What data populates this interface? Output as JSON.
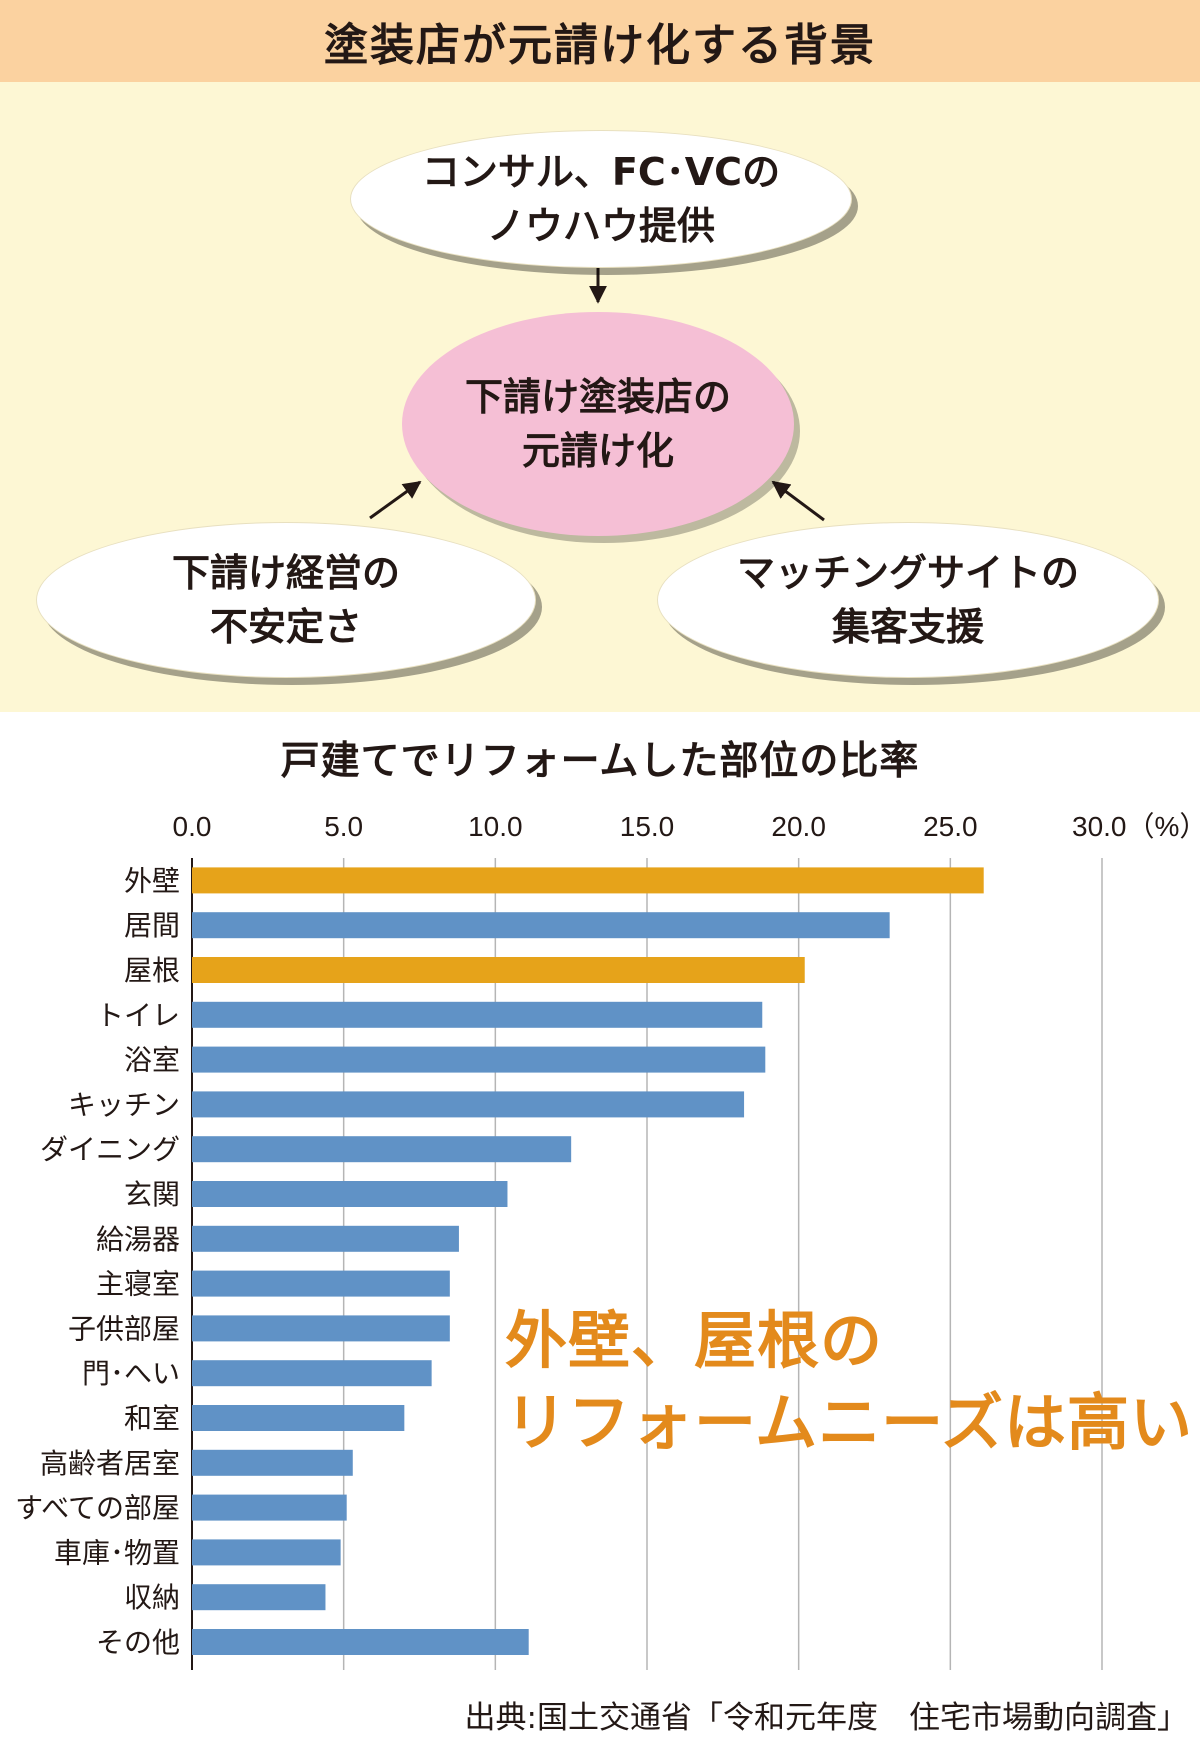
{
  "diagram": {
    "title": "塗装店が元請け化する背景",
    "top_node": "コンサル、FC･VCの\nノウハウ提供",
    "center_node": "下請け塗装店の\n元請け化",
    "left_node": "下請け経営の\n不安定さ",
    "right_node": "マッチングサイトの\n集客支援"
  },
  "chart_title": "戸建てでリフォームした部位の比率",
  "callout": "外壁、屋根の\nリフォームニーズは高い",
  "source": "出典:国土交通省「令和元年度　住宅市場動向調査」",
  "colors": {
    "highlight": "#e6a31a",
    "default": "#6092c6",
    "callout": "#e38a1c",
    "header": "#fbd2a0",
    "panel": "#fdf7d4",
    "center_node": "#f5bfd5"
  },
  "chart_data": {
    "type": "bar",
    "orientation": "horizontal",
    "title": "戸建てでリフォームした部位の比率",
    "xlim": [
      0,
      30
    ],
    "x_ticks": [
      "0.0",
      "5.0",
      "10.0",
      "15.0",
      "20.0",
      "25.0",
      "30.0（%）"
    ],
    "x_tick_values": [
      0,
      5,
      10,
      15,
      20,
      25,
      30
    ],
    "grid": "vertical",
    "categories": [
      "外壁",
      "居間",
      "屋根",
      "トイレ",
      "浴室",
      "キッチン",
      "ダイニング",
      "玄関",
      "給湯器",
      "主寝室",
      "子供部屋",
      "門･へい",
      "和室",
      "高齢者居室",
      "すべての部屋",
      "車庫･物置",
      "収納",
      "その他"
    ],
    "values": [
      26.1,
      23.0,
      20.2,
      18.8,
      18.9,
      18.2,
      12.5,
      10.4,
      8.8,
      8.5,
      8.5,
      7.9,
      7.0,
      5.3,
      5.1,
      4.9,
      4.4,
      11.1
    ],
    "highlight": [
      "外壁",
      "屋根"
    ]
  }
}
